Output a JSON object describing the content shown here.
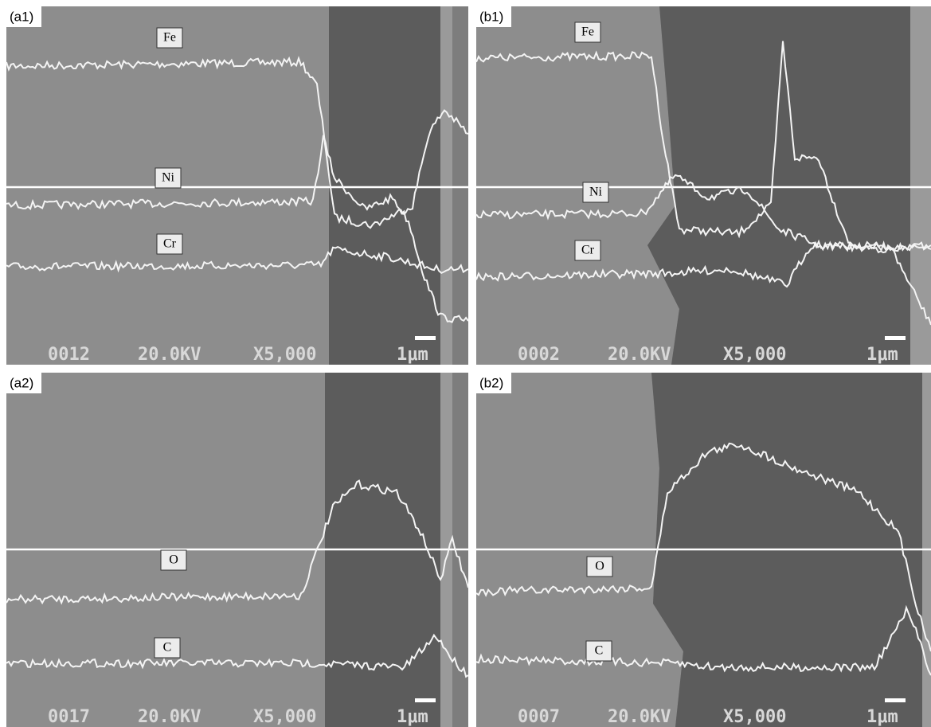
{
  "panels": [
    {
      "label": "(a1)",
      "elements": [
        "Fe",
        "Ni",
        "Cr"
      ],
      "footer": {
        "number": "0012",
        "voltage": "20.0KV",
        "magnification": "X5,000",
        "scale": "1μm"
      }
    },
    {
      "label": "(b1)",
      "elements": [
        "Fe",
        "Ni",
        "Cr"
      ],
      "footer": {
        "number": "0002",
        "voltage": "20.0KV",
        "magnification": "X5,000",
        "scale": "1μm"
      }
    },
    {
      "label": "(a2)",
      "elements": [
        "O",
        "C"
      ],
      "footer": {
        "number": "0017",
        "voltage": "20.0KV",
        "magnification": "X5,000",
        "scale": "1μm"
      }
    },
    {
      "label": "(b2)",
      "elements": [
        "O",
        "C"
      ],
      "footer": {
        "number": "0007",
        "voltage": "20.0KV",
        "magnification": "X5,000",
        "scale": "1μm"
      }
    }
  ]
}
